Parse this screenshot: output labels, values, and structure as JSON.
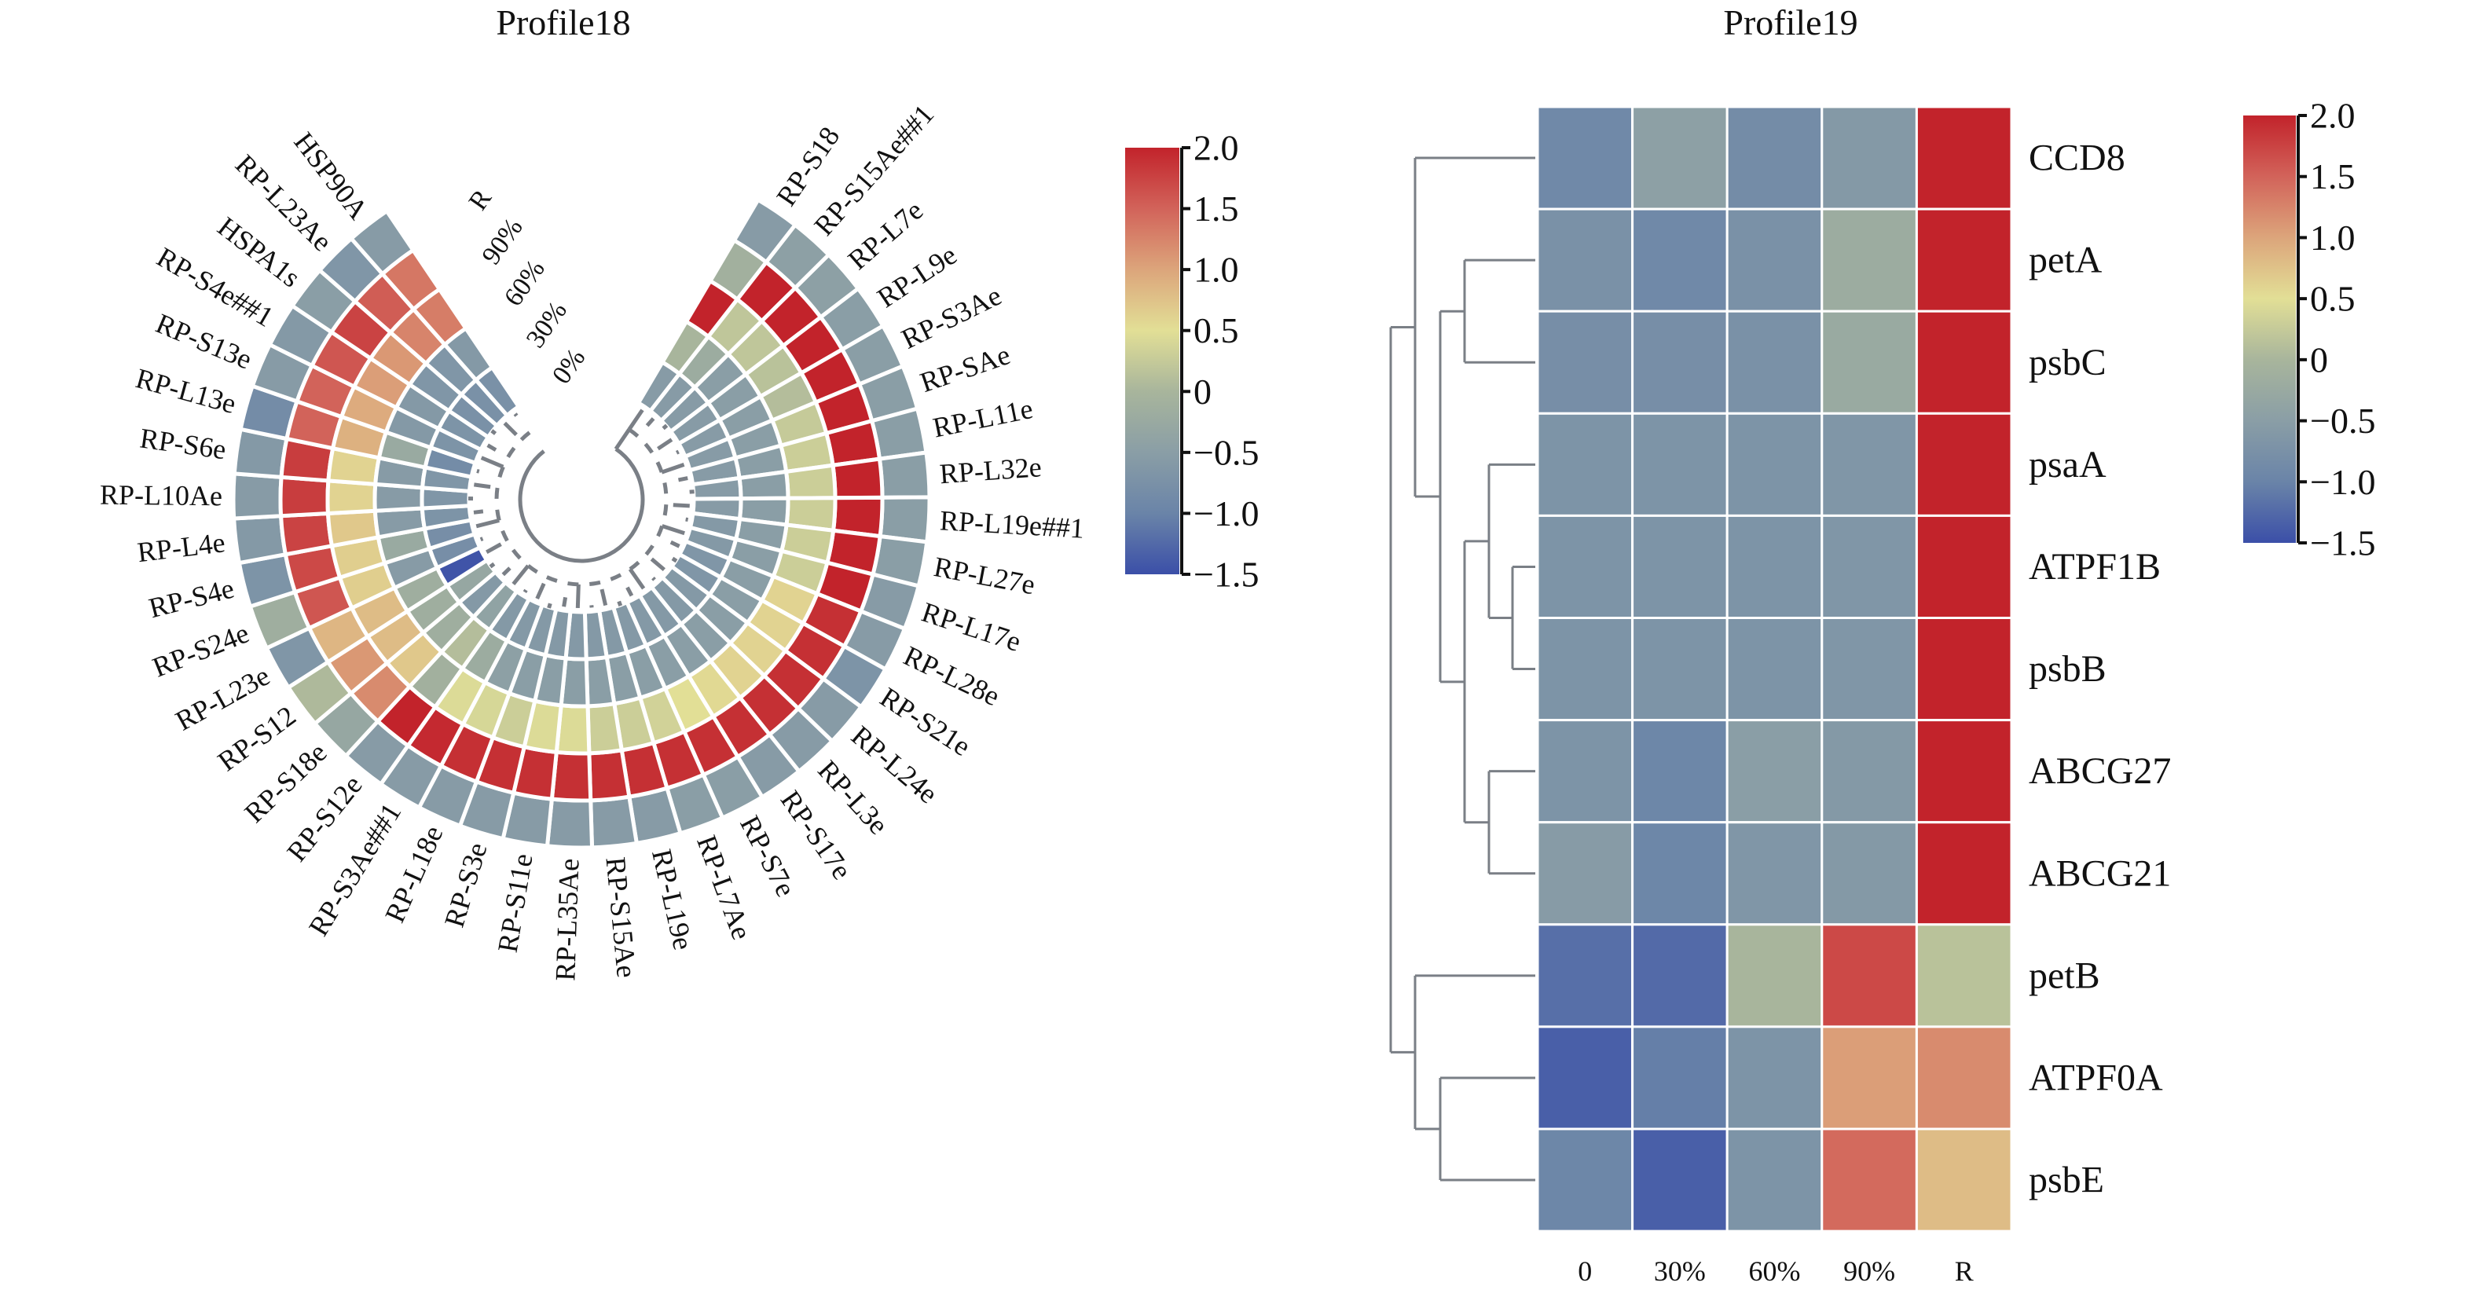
{
  "chart_data": [
    {
      "type": "heatmap",
      "layout": "circular",
      "title": "Profile18",
      "ring_labels": [
        "R",
        "90%",
        "60%",
        "30%",
        "0%"
      ],
      "ring_order": "outer-to-inner",
      "color_scale": {
        "min": -1.5,
        "max": 2.0,
        "ticks": [
          "2.0",
          "1.5",
          "1.0",
          "0.5",
          "0",
          "−0.5",
          "−1.0",
          "−1.5"
        ],
        "tick_values": [
          2.0,
          1.5,
          1.0,
          0.5,
          0,
          -0.5,
          -1.0,
          -1.5
        ],
        "colormap": [
          "#3b4fa8",
          "#6a84a8",
          "#8a9ea6",
          "#a8b59c",
          "#e2df96",
          "#dca57b",
          "#d2635a",
          "#c2232b"
        ]
      },
      "genes": [
        {
          "name": "RP-S18",
          "values": [
            -0.55,
            -0.1,
            2.0,
            0.0,
            -0.55
          ]
        },
        {
          "name": "RP-S15Ae##1",
          "values": [
            -0.45,
            2.0,
            0.2,
            -0.2,
            -0.55
          ]
        },
        {
          "name": "RP-L7e",
          "values": [
            -0.45,
            2.0,
            0.2,
            -0.5,
            -0.55
          ]
        },
        {
          "name": "RP-L9e",
          "values": [
            -0.5,
            2.0,
            0.15,
            -0.5,
            -0.55
          ]
        },
        {
          "name": "RP-S3Ae",
          "values": [
            -0.5,
            2.0,
            0.1,
            -0.5,
            -0.55
          ]
        },
        {
          "name": "RP-SAe",
          "values": [
            -0.5,
            2.0,
            0.25,
            -0.5,
            -0.55
          ]
        },
        {
          "name": "RP-L11e",
          "values": [
            -0.5,
            2.0,
            0.3,
            -0.5,
            -0.55
          ]
        },
        {
          "name": "RP-L32e",
          "values": [
            -0.5,
            2.0,
            0.3,
            -0.5,
            -0.55
          ]
        },
        {
          "name": "RP-L19e##1",
          "values": [
            -0.5,
            2.0,
            0.3,
            -0.5,
            -0.55
          ]
        },
        {
          "name": "RP-L27e",
          "values": [
            -0.5,
            2.0,
            0.3,
            -0.5,
            -0.6
          ]
        },
        {
          "name": "RP-L17e",
          "values": [
            -0.55,
            2.0,
            0.3,
            -0.5,
            -0.6
          ]
        },
        {
          "name": "RP-L28e",
          "values": [
            -0.55,
            1.9,
            0.6,
            -0.5,
            -0.65
          ]
        },
        {
          "name": "RP-S21e",
          "values": [
            -0.7,
            1.9,
            0.6,
            -0.5,
            -0.65
          ]
        },
        {
          "name": "RP-L24e",
          "values": [
            -0.55,
            1.9,
            0.6,
            -0.5,
            -0.6
          ]
        },
        {
          "name": "RP-L3e",
          "values": [
            -0.55,
            1.9,
            0.6,
            -0.5,
            -0.6
          ]
        },
        {
          "name": "RP-S17e",
          "values": [
            -0.55,
            1.9,
            0.55,
            -0.5,
            -0.6
          ]
        },
        {
          "name": "RP-S7e",
          "values": [
            -0.5,
            1.9,
            0.5,
            -0.5,
            -0.6
          ]
        },
        {
          "name": "RP-L7Ae",
          "values": [
            -0.5,
            1.9,
            0.35,
            -0.5,
            -0.6
          ]
        },
        {
          "name": "RP-L19e",
          "values": [
            -0.55,
            1.9,
            0.3,
            -0.5,
            -0.6
          ]
        },
        {
          "name": "RP-S15Ae",
          "values": [
            -0.55,
            1.9,
            0.3,
            -0.5,
            -0.6
          ]
        },
        {
          "name": "RP-L35Ae",
          "values": [
            -0.55,
            1.9,
            0.45,
            -0.5,
            -0.6
          ]
        },
        {
          "name": "RP-S11e",
          "values": [
            -0.55,
            1.9,
            0.45,
            -0.5,
            -0.6
          ]
        },
        {
          "name": "RP-S3e",
          "values": [
            -0.55,
            1.9,
            0.3,
            -0.5,
            -0.6
          ]
        },
        {
          "name": "RP-L18e",
          "values": [
            -0.55,
            1.9,
            0.4,
            -0.45,
            -0.6
          ]
        },
        {
          "name": "RP-S3Ae##1",
          "values": [
            -0.55,
            1.95,
            0.45,
            -0.2,
            -0.6
          ]
        },
        {
          "name": "RP-S12e",
          "values": [
            -0.55,
            2.0,
            -0.1,
            0.1,
            -0.4
          ]
        },
        {
          "name": "RP-S18e",
          "values": [
            -0.3,
            1.2,
            0.7,
            -0.15,
            -0.6
          ]
        },
        {
          "name": "RP-S12",
          "values": [
            0.05,
            1.1,
            0.8,
            -0.15,
            -0.3
          ]
        },
        {
          "name": "RP-L23e",
          "values": [
            -0.65,
            0.85,
            0.8,
            -0.15,
            -1.45
          ]
        },
        {
          "name": "RP-S24e",
          "values": [
            -0.15,
            1.6,
            0.65,
            -0.55,
            -0.8
          ]
        },
        {
          "name": "RP-S4e",
          "values": [
            -0.7,
            1.7,
            0.65,
            -0.25,
            -0.8
          ]
        },
        {
          "name": "RP-L4e",
          "values": [
            -0.6,
            1.75,
            0.7,
            -0.55,
            -0.7
          ]
        },
        {
          "name": "RP-L10Ae",
          "values": [
            -0.55,
            1.8,
            0.6,
            -0.55,
            -0.65
          ]
        },
        {
          "name": "RP-S6e",
          "values": [
            -0.6,
            1.8,
            0.6,
            -0.55,
            -0.65
          ]
        },
        {
          "name": "RP-L13e",
          "values": [
            -0.85,
            1.5,
            0.9,
            -0.25,
            -0.85
          ]
        },
        {
          "name": "RP-S13e",
          "values": [
            -0.55,
            1.5,
            0.95,
            -0.6,
            -0.7
          ]
        },
        {
          "name": "RP-S4e##1",
          "values": [
            -0.6,
            1.6,
            1.05,
            -0.6,
            -0.7
          ]
        },
        {
          "name": "HSPA1s",
          "values": [
            -0.5,
            1.75,
            1.1,
            -0.65,
            -0.75
          ]
        },
        {
          "name": "RP-L23Ae",
          "values": [
            -0.65,
            1.55,
            1.25,
            -0.65,
            -0.75
          ]
        },
        {
          "name": "HSP90A",
          "values": [
            -0.55,
            1.35,
            1.3,
            -0.6,
            -0.75
          ]
        }
      ]
    },
    {
      "type": "heatmap",
      "title": "Profile19",
      "columns": [
        "0",
        "30%",
        "60%",
        "90%",
        "R"
      ],
      "rows": [
        "CCD8",
        "petA",
        "psbC",
        "psaA",
        "ATPF1B",
        "psbB",
        "ABCG27",
        "ABCG21",
        "petB",
        "ATPF0A",
        "psbE"
      ],
      "values": [
        [
          -0.9,
          -0.45,
          -0.85,
          -0.6,
          2.0
        ],
        [
          -0.75,
          -0.9,
          -0.75,
          -0.2,
          2.0
        ],
        [
          -0.8,
          -0.8,
          -0.75,
          -0.25,
          2.0
        ],
        [
          -0.7,
          -0.7,
          -0.7,
          -0.65,
          2.0
        ],
        [
          -0.7,
          -0.7,
          -0.7,
          -0.65,
          2.0
        ],
        [
          -0.7,
          -0.7,
          -0.7,
          -0.65,
          2.0
        ],
        [
          -0.7,
          -0.95,
          -0.5,
          -0.6,
          2.0
        ],
        [
          -0.55,
          -0.95,
          -0.65,
          -0.6,
          2.0
        ],
        [
          -1.2,
          -1.25,
          0.0,
          1.7,
          0.15
        ],
        [
          -1.35,
          -1.05,
          -0.7,
          1.05,
          1.2
        ],
        [
          -0.95,
          -1.35,
          -0.7,
          1.45,
          0.8
        ]
      ],
      "color_scale": {
        "min": -1.5,
        "max": 2.0,
        "ticks": [
          "2.0",
          "1.5",
          "1.0",
          "0.5",
          "0",
          "−0.5",
          "−1.0",
          "−1.5"
        ],
        "tick_values": [
          2.0,
          1.5,
          1.0,
          0.5,
          0,
          -0.5,
          -1.0,
          -1.5
        ]
      },
      "row_dendrogram": true
    }
  ]
}
